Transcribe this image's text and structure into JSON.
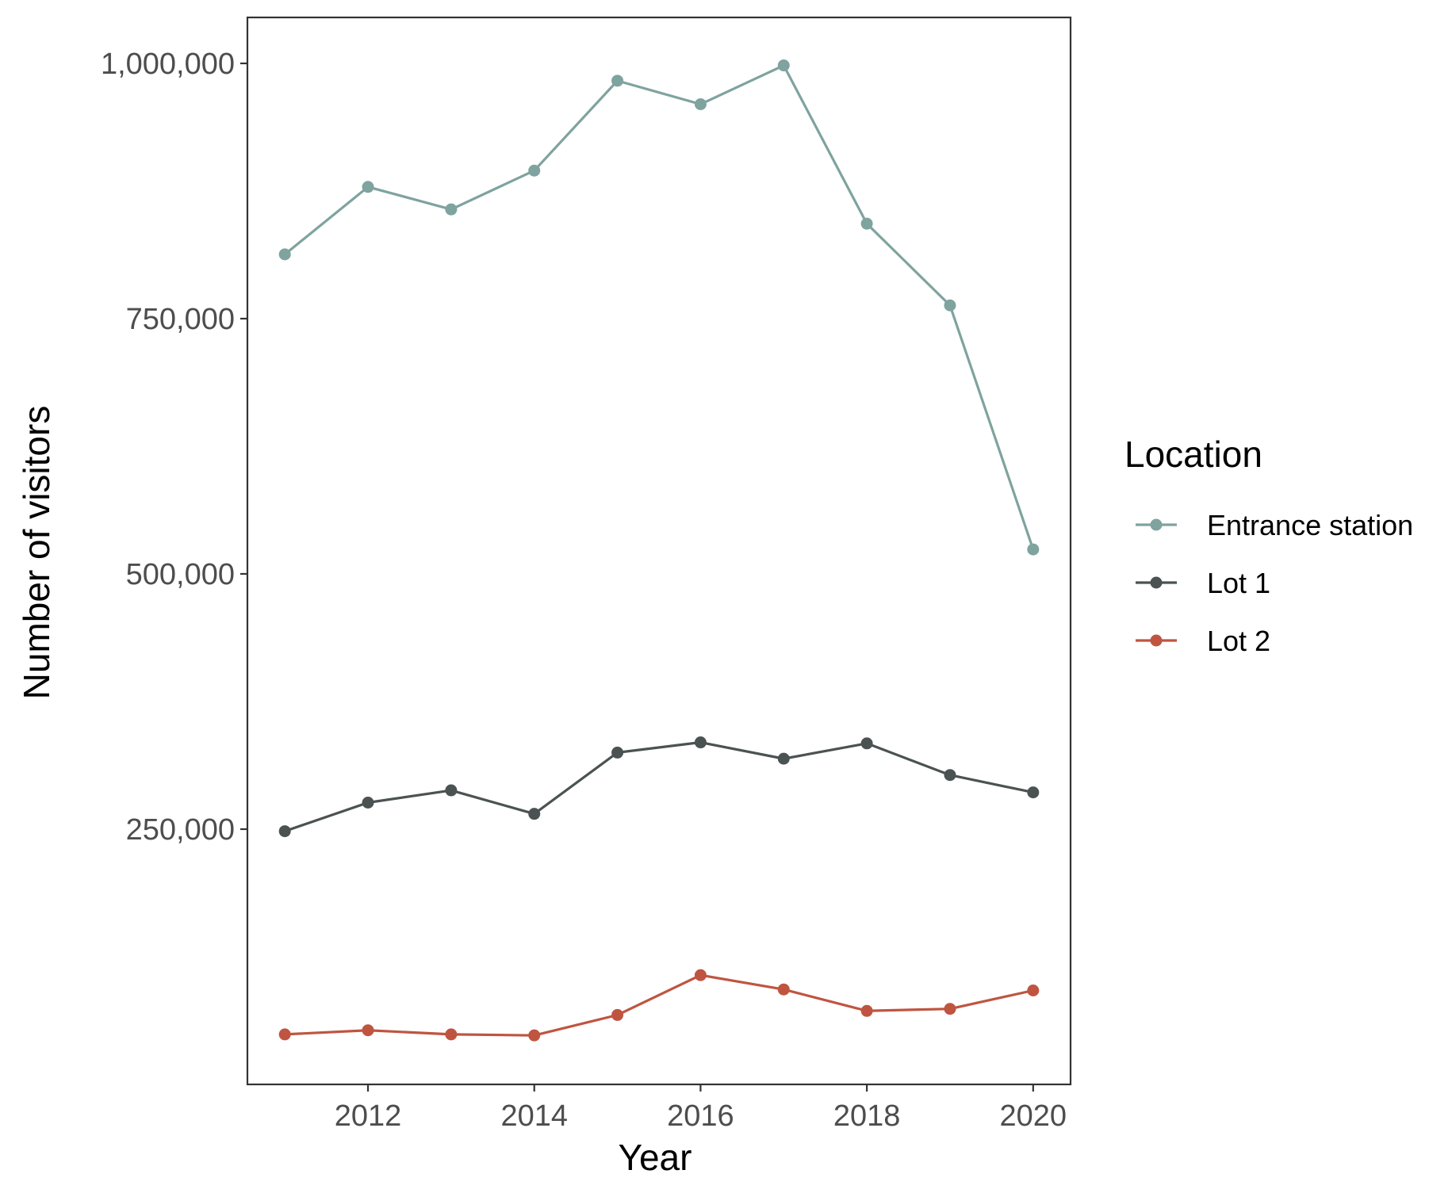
{
  "chart_data": {
    "type": "line",
    "title": "",
    "xlabel": "Year",
    "ylabel": "Number of visitors",
    "xlim": [
      2010.55,
      2020.45
    ],
    "ylim": [
      0,
      1045000
    ],
    "x_ticks": [
      2012,
      2014,
      2016,
      2018,
      2020
    ],
    "x_tick_labels": [
      "2012",
      "2014",
      "2016",
      "2018",
      "2020"
    ],
    "y_ticks": [
      250000,
      500000,
      750000,
      1000000
    ],
    "y_tick_labels": [
      "250,000",
      "500,000",
      "750,000",
      "1,000,000"
    ],
    "grid": false,
    "legend": {
      "title": "Location",
      "position": "right"
    },
    "x": [
      2011,
      2012,
      2013,
      2014,
      2015,
      2016,
      2017,
      2018,
      2019,
      2020
    ],
    "series": [
      {
        "name": "Entrance station",
        "color": "#7fa39f",
        "values": [
          813000,
          879000,
          857000,
          895000,
          983000,
          960000,
          998000,
          843000,
          763000,
          524000
        ]
      },
      {
        "name": "Lot 1",
        "color": "#4b5352",
        "values": [
          248000,
          276000,
          288000,
          265000,
          325000,
          335000,
          319000,
          334000,
          303000,
          286000
        ]
      },
      {
        "name": "Lot 2",
        "color": "#bf5540",
        "values": [
          49000,
          53000,
          49000,
          48000,
          68000,
          107000,
          93000,
          72000,
          74000,
          92000
        ]
      }
    ]
  }
}
